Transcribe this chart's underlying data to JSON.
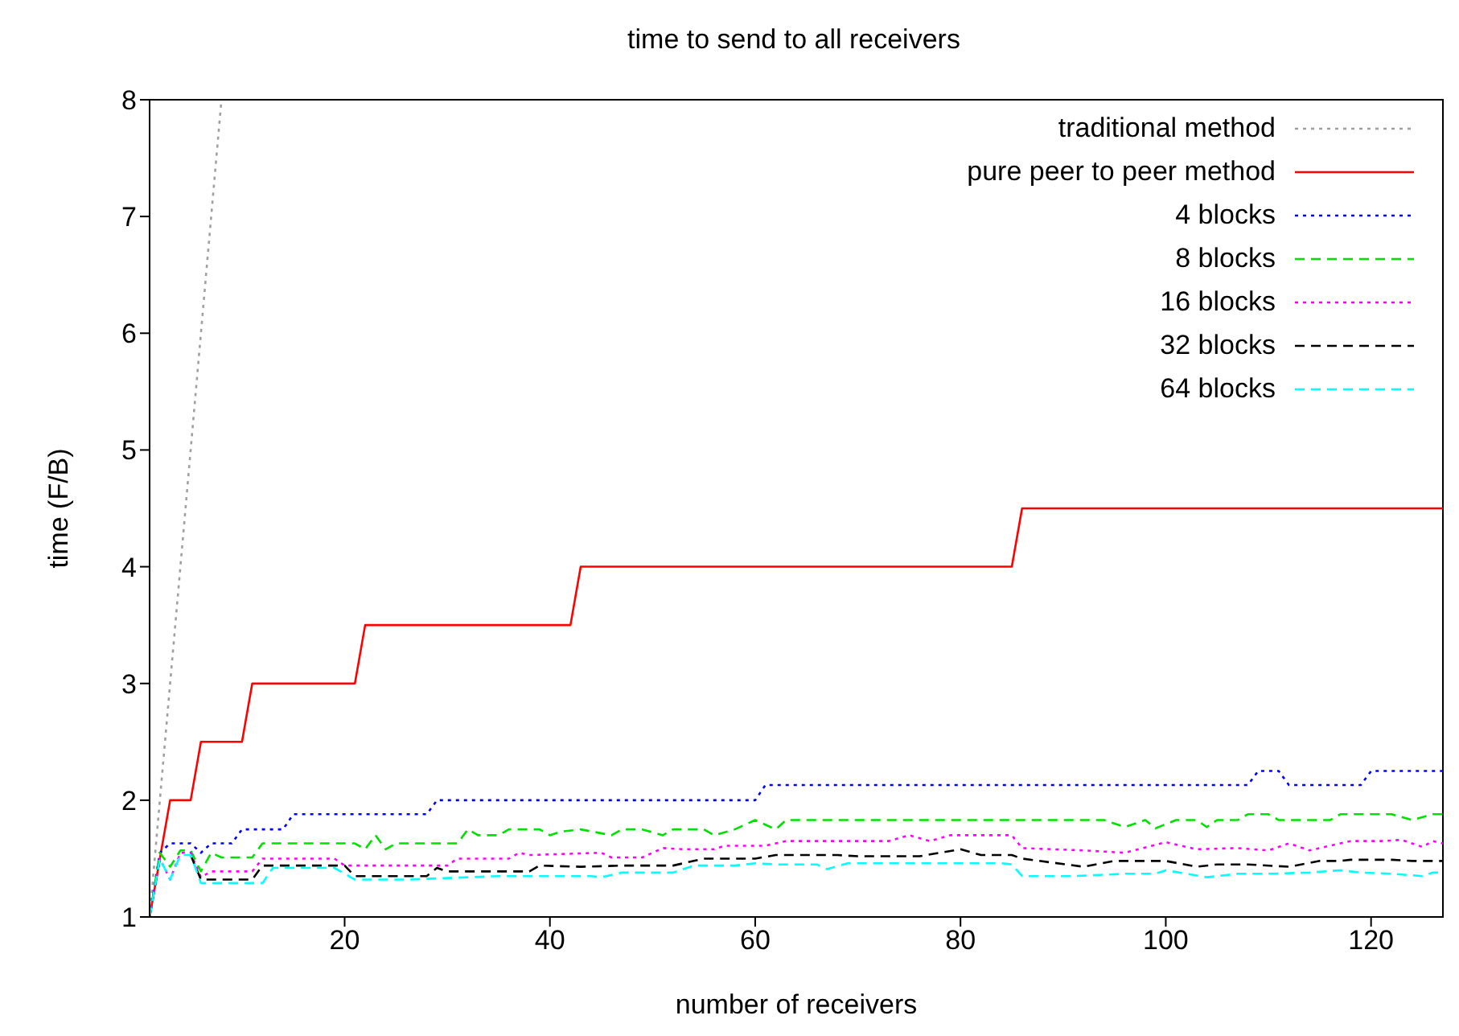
{
  "chart_data": {
    "type": "line",
    "title": "time to send to all receivers",
    "xlabel": "number of receivers",
    "ylabel": "time (F/B)",
    "xlim": [
      1,
      127
    ],
    "xticks": [
      20,
      40,
      60,
      80,
      100,
      120
    ],
    "ylim": [
      1,
      8
    ],
    "yticks": [
      1,
      2,
      3,
      4,
      5,
      6,
      7,
      8
    ],
    "grid": false,
    "legend": "top right",
    "marker": "none",
    "series": [
      {
        "name": "traditional method",
        "color": "#a0a0a0",
        "line_style": "dotted",
        "x": [
          1,
          2,
          3,
          4,
          5,
          6,
          7,
          8
        ],
        "values": [
          1,
          2,
          3,
          4,
          5,
          6,
          7,
          8
        ]
      },
      {
        "name": "pure peer to peer method",
        "color": "#ff0000",
        "line_style": "solid",
        "x": [
          1,
          3,
          5,
          6,
          10,
          11,
          21,
          22,
          42,
          43,
          85,
          86,
          127
        ],
        "values": [
          1,
          2,
          2,
          2.5,
          2.5,
          3,
          3,
          3.5,
          3.5,
          4,
          4,
          4.5,
          4.5
        ]
      },
      {
        "name": "4 blocks",
        "color": "#0000ff",
        "line_style": "dotted",
        "x": [
          1,
          2,
          3,
          5,
          6,
          7,
          9,
          10,
          14,
          15,
          28,
          29,
          60,
          61,
          108,
          109,
          111,
          112,
          119,
          120,
          127
        ],
        "values": [
          1,
          1.55,
          1.63,
          1.63,
          1.55,
          1.63,
          1.63,
          1.75,
          1.75,
          1.88,
          1.88,
          2,
          2,
          2.13,
          2.13,
          2.25,
          2.25,
          2.13,
          2.13,
          2.25,
          2.25
        ]
      },
      {
        "name": "8 blocks",
        "color": "#00e000",
        "line_style": "dashed",
        "x": [
          1,
          2,
          3,
          4,
          5,
          6,
          7,
          8,
          11,
          12,
          21,
          22,
          23,
          24,
          25,
          31,
          32,
          33,
          35,
          36,
          39,
          40,
          41,
          43,
          46,
          47,
          49,
          51,
          52,
          55,
          56,
          58,
          60,
          62,
          63,
          94,
          96,
          98,
          99,
          101,
          103,
          104,
          105,
          107,
          108,
          110,
          111,
          116,
          117,
          122,
          124,
          126,
          127
        ],
        "values": [
          1,
          1.55,
          1.43,
          1.57,
          1.57,
          1.39,
          1.55,
          1.51,
          1.51,
          1.63,
          1.63,
          1.58,
          1.7,
          1.58,
          1.63,
          1.63,
          1.75,
          1.7,
          1.7,
          1.75,
          1.75,
          1.7,
          1.73,
          1.75,
          1.7,
          1.75,
          1.75,
          1.7,
          1.75,
          1.75,
          1.7,
          1.75,
          1.83,
          1.75,
          1.83,
          1.83,
          1.77,
          1.83,
          1.76,
          1.83,
          1.83,
          1.77,
          1.83,
          1.83,
          1.88,
          1.88,
          1.83,
          1.83,
          1.88,
          1.88,
          1.83,
          1.88,
          1.88
        ]
      },
      {
        "name": "16 blocks",
        "color": "#ff00ff",
        "line_style": "dotted",
        "x": [
          1,
          2,
          3,
          4,
          5,
          6,
          7,
          11,
          12,
          19,
          20,
          30,
          31,
          36,
          37,
          38,
          45,
          46,
          49,
          51,
          53,
          56,
          57,
          61,
          63,
          73,
          75,
          77,
          79,
          85,
          86,
          92,
          96,
          100,
          103,
          107,
          110,
          112,
          114,
          118,
          121,
          123,
          125,
          126,
          127
        ],
        "values": [
          1,
          1.5,
          1.32,
          1.55,
          1.55,
          1.34,
          1.39,
          1.39,
          1.5,
          1.5,
          1.44,
          1.44,
          1.5,
          1.5,
          1.55,
          1.53,
          1.55,
          1.51,
          1.51,
          1.59,
          1.58,
          1.58,
          1.61,
          1.61,
          1.65,
          1.65,
          1.7,
          1.65,
          1.7,
          1.7,
          1.59,
          1.57,
          1.55,
          1.64,
          1.58,
          1.59,
          1.57,
          1.63,
          1.57,
          1.65,
          1.65,
          1.66,
          1.6,
          1.65,
          1.63
        ]
      },
      {
        "name": "32 blocks",
        "color": "#000000",
        "line_style": "dashed",
        "x": [
          1,
          2,
          3,
          4,
          5,
          6,
          11,
          12,
          20,
          21,
          28,
          29,
          30,
          38,
          39,
          43,
          47,
          52,
          55,
          58,
          60,
          62,
          68,
          70,
          76,
          80,
          82,
          85,
          86,
          92,
          95,
          98,
          100,
          103,
          105,
          108,
          112,
          115,
          117,
          118,
          122,
          124,
          127
        ],
        "values": [
          1,
          1.5,
          null,
          null,
          1.53,
          1.32,
          1.32,
          1.44,
          1.44,
          1.35,
          1.35,
          1.42,
          1.39,
          1.39,
          1.44,
          1.43,
          1.44,
          1.44,
          1.5,
          1.5,
          1.5,
          1.53,
          1.53,
          1.52,
          1.52,
          1.58,
          1.53,
          1.53,
          1.5,
          1.43,
          1.48,
          1.48,
          1.48,
          1.43,
          1.45,
          1.45,
          1.43,
          1.48,
          1.48,
          1.49,
          1.49,
          1.48,
          1.48
        ]
      },
      {
        "name": "64 blocks",
        "color": "#00ffff",
        "line_style": "dashed",
        "x": [
          1,
          2,
          3,
          4,
          5,
          6,
          12,
          13,
          19,
          21,
          26,
          35,
          40,
          44,
          45,
          47,
          52,
          54,
          58,
          60,
          62,
          66,
          67,
          69,
          84,
          85,
          86,
          91,
          96,
          99,
          100,
          104,
          107,
          110,
          114,
          117,
          119,
          122,
          125,
          126,
          127
        ],
        "values": [
          1,
          1.5,
          1.32,
          1.53,
          1.53,
          1.29,
          1.29,
          1.42,
          1.42,
          1.32,
          1.32,
          1.35,
          1.35,
          1.35,
          1.34,
          1.38,
          1.38,
          1.44,
          1.44,
          1.46,
          1.45,
          1.45,
          1.41,
          1.46,
          1.46,
          1.45,
          1.35,
          1.35,
          1.37,
          1.37,
          1.4,
          1.34,
          1.37,
          1.37,
          1.38,
          1.4,
          1.38,
          1.37,
          1.35,
          1.38,
          1.38
        ]
      }
    ]
  }
}
